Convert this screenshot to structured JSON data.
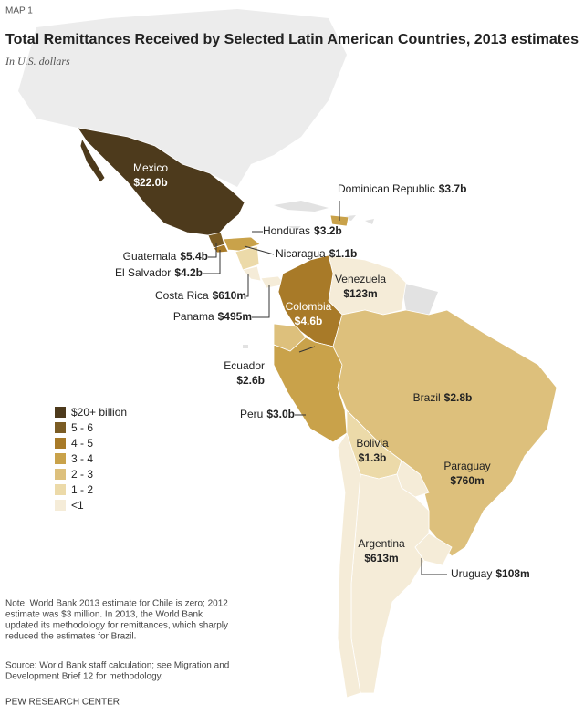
{
  "header": {
    "label": "MAP 1",
    "title": "Total Remittances Received by Selected Latin American Countries, 2013 estimates",
    "subtitle": "In U.S. dollars"
  },
  "legend": [
    {
      "label": "$20+ billion",
      "color": "#4d3a1c"
    },
    {
      "label": "5 - 6",
      "color": "#7b5c24"
    },
    {
      "label": "4 - 5",
      "color": "#a87a28"
    },
    {
      "label": "3 - 4",
      "color": "#c9a24a"
    },
    {
      "label": "2 - 3",
      "color": "#ddc07c"
    },
    {
      "label": "1 - 2",
      "color": "#ecdaa9"
    },
    {
      "label": "<1",
      "color": "#f5ecd8"
    }
  ],
  "countries": [
    {
      "name": "Mexico",
      "value": "$22.0b",
      "color": "#4d3a1c"
    },
    {
      "name": "Dominican Republic",
      "value": "$3.7b",
      "color": "#c9a24a"
    },
    {
      "name": "Guatemala",
      "value": "$5.4b",
      "color": "#7b5c24"
    },
    {
      "name": "El Salvador",
      "value": "$4.2b",
      "color": "#a87a28"
    },
    {
      "name": "Honduras",
      "value": "$3.2b",
      "color": "#c9a24a"
    },
    {
      "name": "Nicaragua",
      "value": "$1.1b",
      "color": "#ecdaa9"
    },
    {
      "name": "Costa Rica",
      "value": "$610m",
      "color": "#f5ecd8"
    },
    {
      "name": "Panama",
      "value": "$495m",
      "color": "#f5ecd8"
    },
    {
      "name": "Colombia",
      "value": "$4.6b",
      "color": "#a87a28"
    },
    {
      "name": "Venezuela",
      "value": "$123m",
      "color": "#f5ecd8"
    },
    {
      "name": "Ecuador",
      "value": "$2.6b",
      "color": "#ddc07c"
    },
    {
      "name": "Peru",
      "value": "$3.0b",
      "color": "#c9a24a"
    },
    {
      "name": "Brazil",
      "value": "$2.8b",
      "color": "#ddc07c"
    },
    {
      "name": "Bolivia",
      "value": "$1.3b",
      "color": "#ecdaa9"
    },
    {
      "name": "Paraguay",
      "value": "$760m",
      "color": "#f5ecd8"
    },
    {
      "name": "Argentina",
      "value": "$613m",
      "color": "#f5ecd8"
    },
    {
      "name": "Uruguay",
      "value": "$108m",
      "color": "#f5ecd8"
    }
  ],
  "note": [
    "Note: World Bank 2013 estimate for Chile is zero; 2012",
    "estimate was $3 million. In 2013, the World Bank",
    "updated its methodology for remittances, which sharply",
    "reduced the estimates for Brazil."
  ],
  "source": [
    "Source: World Bank staff calculation; see Migration and",
    "Development Brief 12 for methodology."
  ],
  "footer": "PEW RESEARCH CENTER"
}
